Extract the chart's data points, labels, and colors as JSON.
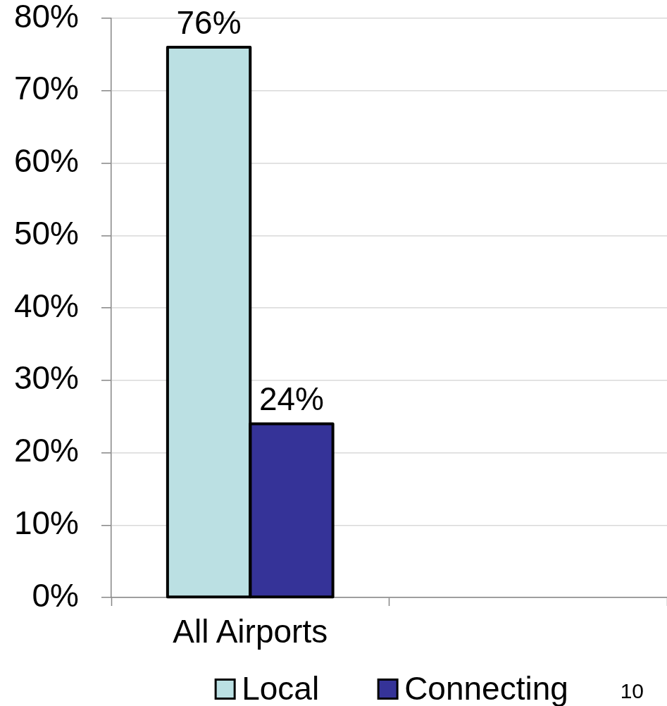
{
  "chart_data": {
    "type": "bar",
    "categories": [
      "All Airports",
      null
    ],
    "series": [
      {
        "name": "Local",
        "color": "#bbe0e3",
        "values": [
          76,
          null
        ],
        "value_labels": [
          "76%",
          null
        ]
      },
      {
        "name": "Connecting",
        "color": "#353398",
        "values": [
          24,
          null
        ],
        "value_labels": [
          "24%",
          null
        ]
      }
    ],
    "ylim": [
      0,
      80
    ],
    "yticks": [
      {
        "value": 0,
        "label": "0%"
      },
      {
        "value": 10,
        "label": "10%"
      },
      {
        "value": 20,
        "label": "20%"
      },
      {
        "value": 30,
        "label": "30%"
      },
      {
        "value": 40,
        "label": "40%"
      },
      {
        "value": 50,
        "label": "50%"
      },
      {
        "value": 60,
        "label": "60%"
      },
      {
        "value": 70,
        "label": "70%"
      },
      {
        "value": 80,
        "label": "80%"
      }
    ],
    "grid": "y",
    "legend": "bottom",
    "annotations": [
      "10"
    ]
  }
}
